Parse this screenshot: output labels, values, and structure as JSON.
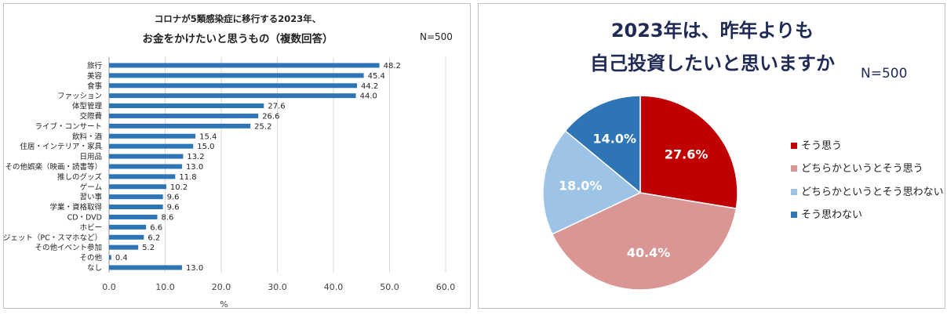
{
  "left_panel": {
    "title_line1": "コロナが5類感染症に移行する2023年、",
    "title_line2": "お金をかけたいと思うもの（複数回答）",
    "n_label": "N=500"
  },
  "right_panel": {
    "title_line1": "2023年は、昨年よりも",
    "title_line2": "自己投資したいと思いますか",
    "n_label": "N=500"
  },
  "chart_data": [
    {
      "type": "bar",
      "orientation": "horizontal",
      "categories": [
        "旅行",
        "美容",
        "食事",
        "ファッション",
        "体型管理",
        "交際費",
        "ライブ・コンサート",
        "飲料・酒",
        "住居・インテリア・家具",
        "日用品",
        "その他娯楽（映画・読書等）",
        "推しのグッズ",
        "ゲーム",
        "習い事",
        "学業・資格取得",
        "CD・DVD",
        "ホビー",
        "ガジェット（PC・スマホなど）",
        "その他イベント参加",
        "その他",
        "なし"
      ],
      "values": [
        48.2,
        45.4,
        44.2,
        44.0,
        27.6,
        26.6,
        25.2,
        15.4,
        15.0,
        13.2,
        13.0,
        11.8,
        10.2,
        9.6,
        9.6,
        8.6,
        6.6,
        6.2,
        5.2,
        0.4,
        13.0
      ],
      "value_labels": [
        "48.2",
        "45.4",
        "44.2",
        "44.0",
        "27.6",
        "26.6",
        "25.2",
        "15.4",
        "15.0",
        "13.2",
        "13.0",
        "11.8",
        "10.2",
        "9.6",
        "9.6",
        "8.6",
        "6.6",
        "6.2",
        "5.2",
        "0.4",
        "13.0"
      ],
      "xlabel": "%",
      "xlim": [
        0,
        60
      ],
      "xticks": [
        "0.0",
        "10.0",
        "20.0",
        "30.0",
        "40.0",
        "50.0",
        "60.0"
      ],
      "grid": true,
      "color": "#2e75b6"
    },
    {
      "type": "pie",
      "labels": [
        "そう思う",
        "どちらかというとそう思う",
        "どちらかというとそう思わない",
        "そう思わない"
      ],
      "values": [
        27.6,
        40.4,
        18.0,
        14.0
      ],
      "value_labels": [
        "27.6%",
        "40.4%",
        "18.0%",
        "14.0%"
      ],
      "colors": [
        "#c00000",
        "#d99694",
        "#9dc3e6",
        "#2e75b6"
      ],
      "legend_position": "right"
    }
  ]
}
